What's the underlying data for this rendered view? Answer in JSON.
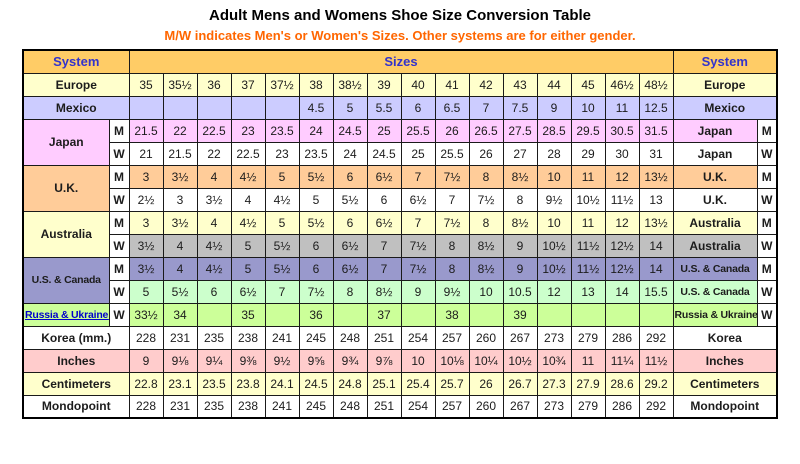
{
  "title": "Adult Mens and Womens Shoe Size Conversion Table",
  "subtitle": "M/W indicates Men's or Women's Sizes. Other systems are for either gender.",
  "colors": {
    "header_bg": "#FFCC66",
    "header_text": "#3333CC",
    "subtitle_text": "#FF6600",
    "grid_red_line": "#FF8080",
    "border": "#000000",
    "link": "#0000CC",
    "asterisk": "#FF0000",
    "mw_cell_bg": "#FFFFFF"
  },
  "chart_data": {
    "type": "table",
    "title": "Adult Mens and Womens Shoe Size Conversion Table",
    "subtitle": "M/W indicates Men's or Women's Sizes. Other systems are for either gender.",
    "header": {
      "system_left": "System",
      "sizes": "Sizes",
      "system_right": "System"
    },
    "columns_count": 16,
    "groups": [
      {
        "left_label": "Europe",
        "right_label": "Europe",
        "link": false,
        "left_bg": "#FFFFCC",
        "rows": [
          {
            "mw": "",
            "bg": "#FFFFCC",
            "values": [
              "35",
              "35½",
              "36",
              "37",
              "37½",
              "38",
              "38½",
              "39",
              "40",
              "41",
              "42",
              "43",
              "44",
              "45",
              "46½",
              "48½"
            ]
          }
        ]
      },
      {
        "left_label": "Mexico",
        "right_label": "Mexico",
        "link": false,
        "left_bg": "#CCCCFF",
        "rows": [
          {
            "mw": "",
            "bg": "#CCCCFF",
            "values": [
              "",
              "",
              "",
              "",
              "",
              "4.5",
              "5",
              "5.5",
              "6",
              "6.5",
              "7",
              "7.5",
              "9",
              "10",
              "11",
              "12.5"
            ]
          }
        ]
      },
      {
        "left_label": "Japan",
        "right_label": "Japan",
        "link": false,
        "left_bg": "#FFCCFF",
        "rows": [
          {
            "mw": "M",
            "bg": "#FFCCFF",
            "values": [
              "21.5",
              "22",
              "22.5",
              "23",
              "23.5",
              "24",
              "24.5",
              "25",
              "25.5",
              "26",
              "26.5",
              "27.5",
              "28.5",
              "29.5",
              "30.5",
              "31.5"
            ]
          },
          {
            "mw": "W",
            "bg": "#FFFFFF",
            "values": [
              "21",
              "21.5",
              "22",
              "22.5",
              "23",
              "23.5",
              "24",
              "24.5",
              "25",
              "25.5",
              "26",
              "27",
              "28",
              "29",
              "30",
              "31"
            ]
          }
        ]
      },
      {
        "left_label": "U.K.",
        "right_label": "U.K.",
        "link": false,
        "left_bg": "#FFCC99",
        "rows": [
          {
            "mw": "M",
            "bg": "#FFCC99",
            "values": [
              "3",
              "3½",
              "4",
              "4½",
              "5",
              "5½",
              "6",
              "6½",
              "7",
              "7½",
              "8",
              "8½",
              "10",
              "11",
              "12",
              "13½"
            ]
          },
          {
            "mw": "W",
            "bg": "#FFFFFF",
            "values": [
              "2½",
              "3",
              "3½",
              "4",
              "4½",
              "5",
              "5½",
              "6",
              "6½",
              "7",
              "7½",
              "8",
              "9½",
              "10½",
              "11½",
              "13"
            ]
          }
        ]
      },
      {
        "left_label": "Australia",
        "right_label": "Australia",
        "link": false,
        "left_bg": "#FFFFCC",
        "rows": [
          {
            "mw": "M",
            "bg": "#FFFFCC",
            "values": [
              "3",
              "3½",
              "4",
              "4½",
              "5",
              "5½",
              "6",
              "6½",
              "7",
              "7½",
              "8",
              "8½",
              "10",
              "11",
              "12",
              "13½"
            ]
          },
          {
            "mw": "W",
            "bg": "#C0C0C0",
            "values": [
              "3½",
              "4",
              "4½",
              "5",
              "5½",
              "6",
              "6½",
              "7",
              "7½",
              "8",
              "8½",
              "9",
              "10½",
              "11½",
              "12½",
              "14"
            ]
          }
        ]
      },
      {
        "left_label": "U.S. & Canada",
        "right_label": "U.S. & Canada",
        "link": false,
        "left_bg": "#9999CC",
        "rows": [
          {
            "mw": "M",
            "bg": "#9999CC",
            "values": [
              "3½",
              "4",
              "4½",
              "5",
              "5½",
              "6",
              "6½",
              "7",
              "7½",
              "8",
              "8½",
              "9",
              "10½",
              "11½",
              "12½",
              "14"
            ]
          },
          {
            "mw": "W",
            "bg": "#CCFFCC",
            "values": [
              "5",
              "5½",
              "6",
              "6½",
              "7",
              "7½",
              "8",
              "8½",
              "9",
              "9½",
              "10",
              "10.5",
              "12",
              "13",
              "14",
              "15.5"
            ]
          }
        ]
      },
      {
        "left_label": "Russia & Ukraine",
        "left_label_asterisk": " *",
        "right_label": "Russia & Ukraine",
        "link": true,
        "left_bg": "#CCFF99",
        "rows": [
          {
            "mw": "W",
            "bg": "#CCFF99",
            "values": [
              "33½",
              "34",
              "",
              "35",
              "",
              "36",
              "",
              "37",
              "",
              "38",
              "",
              "39",
              "",
              "",
              "",
              ""
            ]
          }
        ]
      },
      {
        "left_label": "Korea (mm.)",
        "right_label": "Korea",
        "link": false,
        "left_bg": "#FFFFFF",
        "rows": [
          {
            "mw": "",
            "bg": "#FFFFFF",
            "values": [
              "228",
              "231",
              "235",
              "238",
              "241",
              "245",
              "248",
              "251",
              "254",
              "257",
              "260",
              "267",
              "273",
              "279",
              "286",
              "292"
            ]
          }
        ]
      },
      {
        "left_label": "Inches",
        "right_label": "Inches",
        "link": false,
        "left_bg": "#FFCCCC",
        "rows": [
          {
            "mw": "",
            "bg": "#FFCCCC",
            "values": [
              "9",
              "9⅛",
              "9¼",
              "9⅜",
              "9½",
              "9⅝",
              "9¾",
              "9⅞",
              "10",
              "10⅛",
              "10¼",
              "10½",
              "10¾",
              "11",
              "11¼",
              "11½"
            ]
          }
        ]
      },
      {
        "left_label": "Centimeters",
        "right_label": "Centimeters",
        "link": false,
        "left_bg": "#FFFFCC",
        "rows": [
          {
            "mw": "",
            "bg": "#FFFFCC",
            "values": [
              "22.8",
              "23.1",
              "23.5",
              "23.8",
              "24.1",
              "24.5",
              "24.8",
              "25.1",
              "25.4",
              "25.7",
              "26",
              "26.7",
              "27.3",
              "27.9",
              "28.6",
              "29.2"
            ]
          }
        ]
      },
      {
        "left_label": "Mondopoint",
        "right_label": "Mondopoint",
        "link": false,
        "left_bg": "#FFFFFF",
        "rows": [
          {
            "mw": "",
            "bg": "#FFFFFF",
            "values": [
              "228",
              "231",
              "235",
              "238",
              "241",
              "245",
              "248",
              "251",
              "254",
              "257",
              "260",
              "267",
              "273",
              "279",
              "286",
              "292"
            ]
          }
        ]
      }
    ]
  }
}
